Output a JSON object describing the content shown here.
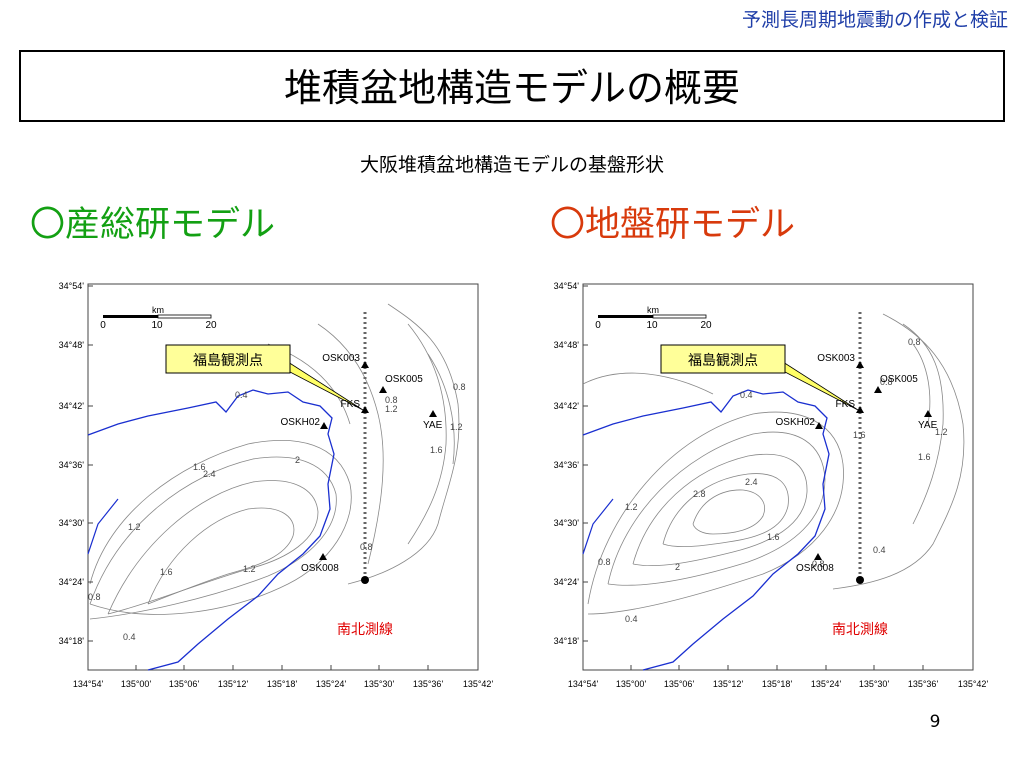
{
  "header": {
    "series_title": "予測長周期地震動の作成と検証",
    "title": "堆積盆地構造モデルの概要",
    "subtitle": "大阪堆積盆地構造モデルの基盤形状"
  },
  "maps": [
    {
      "label": "〇産総研モデル",
      "lat_ticks": [
        "34°54'",
        "34°48'",
        "34°42'",
        "34°36'",
        "34°30'",
        "34°24'",
        "34°18'"
      ],
      "lon_ticks": [
        "134°54'",
        "135°00'",
        "135°06'",
        "135°12'",
        "135°18'",
        "135°24'",
        "135°30'",
        "135°36'",
        "135°42'"
      ],
      "scale": {
        "unit": "km",
        "ticks": [
          "0",
          "10",
          "20"
        ]
      },
      "callout": "福島観測点",
      "stations": [
        "OSK003",
        "OSK005",
        "FKS",
        "OSKH02",
        "YAE",
        "OSK008"
      ],
      "line_label": "南北測線",
      "contour_labels": [
        0.4,
        1.2,
        1.6,
        2.4,
        2,
        1.6,
        1.2,
        0.8,
        0.4,
        0.8,
        1.2,
        0.8,
        1.2,
        1.6,
        0.8
      ]
    },
    {
      "label": "〇地盤研モデル",
      "lat_ticks": [
        "34°54'",
        "34°48'",
        "34°42'",
        "34°36'",
        "34°30'",
        "34°24'",
        "34°18'"
      ],
      "lon_ticks": [
        "134°54'",
        "135°00'",
        "135°06'",
        "135°12'",
        "135°18'",
        "135°24'",
        "135°30'",
        "135°36'",
        "135°42'"
      ],
      "scale": {
        "unit": "km",
        "ticks": [
          "0",
          "10",
          "20"
        ]
      },
      "callout": "福島観測点",
      "stations": [
        "OSK003",
        "OSK005",
        "FKS",
        "OSKH02",
        "YAE",
        "OSK008"
      ],
      "line_label": "南北測線",
      "contour_labels": [
        0.8,
        0.4,
        1.2,
        2.8,
        2.4,
        1.6,
        2,
        0.8,
        0.4,
        0.8,
        0.4,
        1.6,
        1.2,
        0.8,
        1.6
      ]
    }
  ],
  "page_number": "9"
}
